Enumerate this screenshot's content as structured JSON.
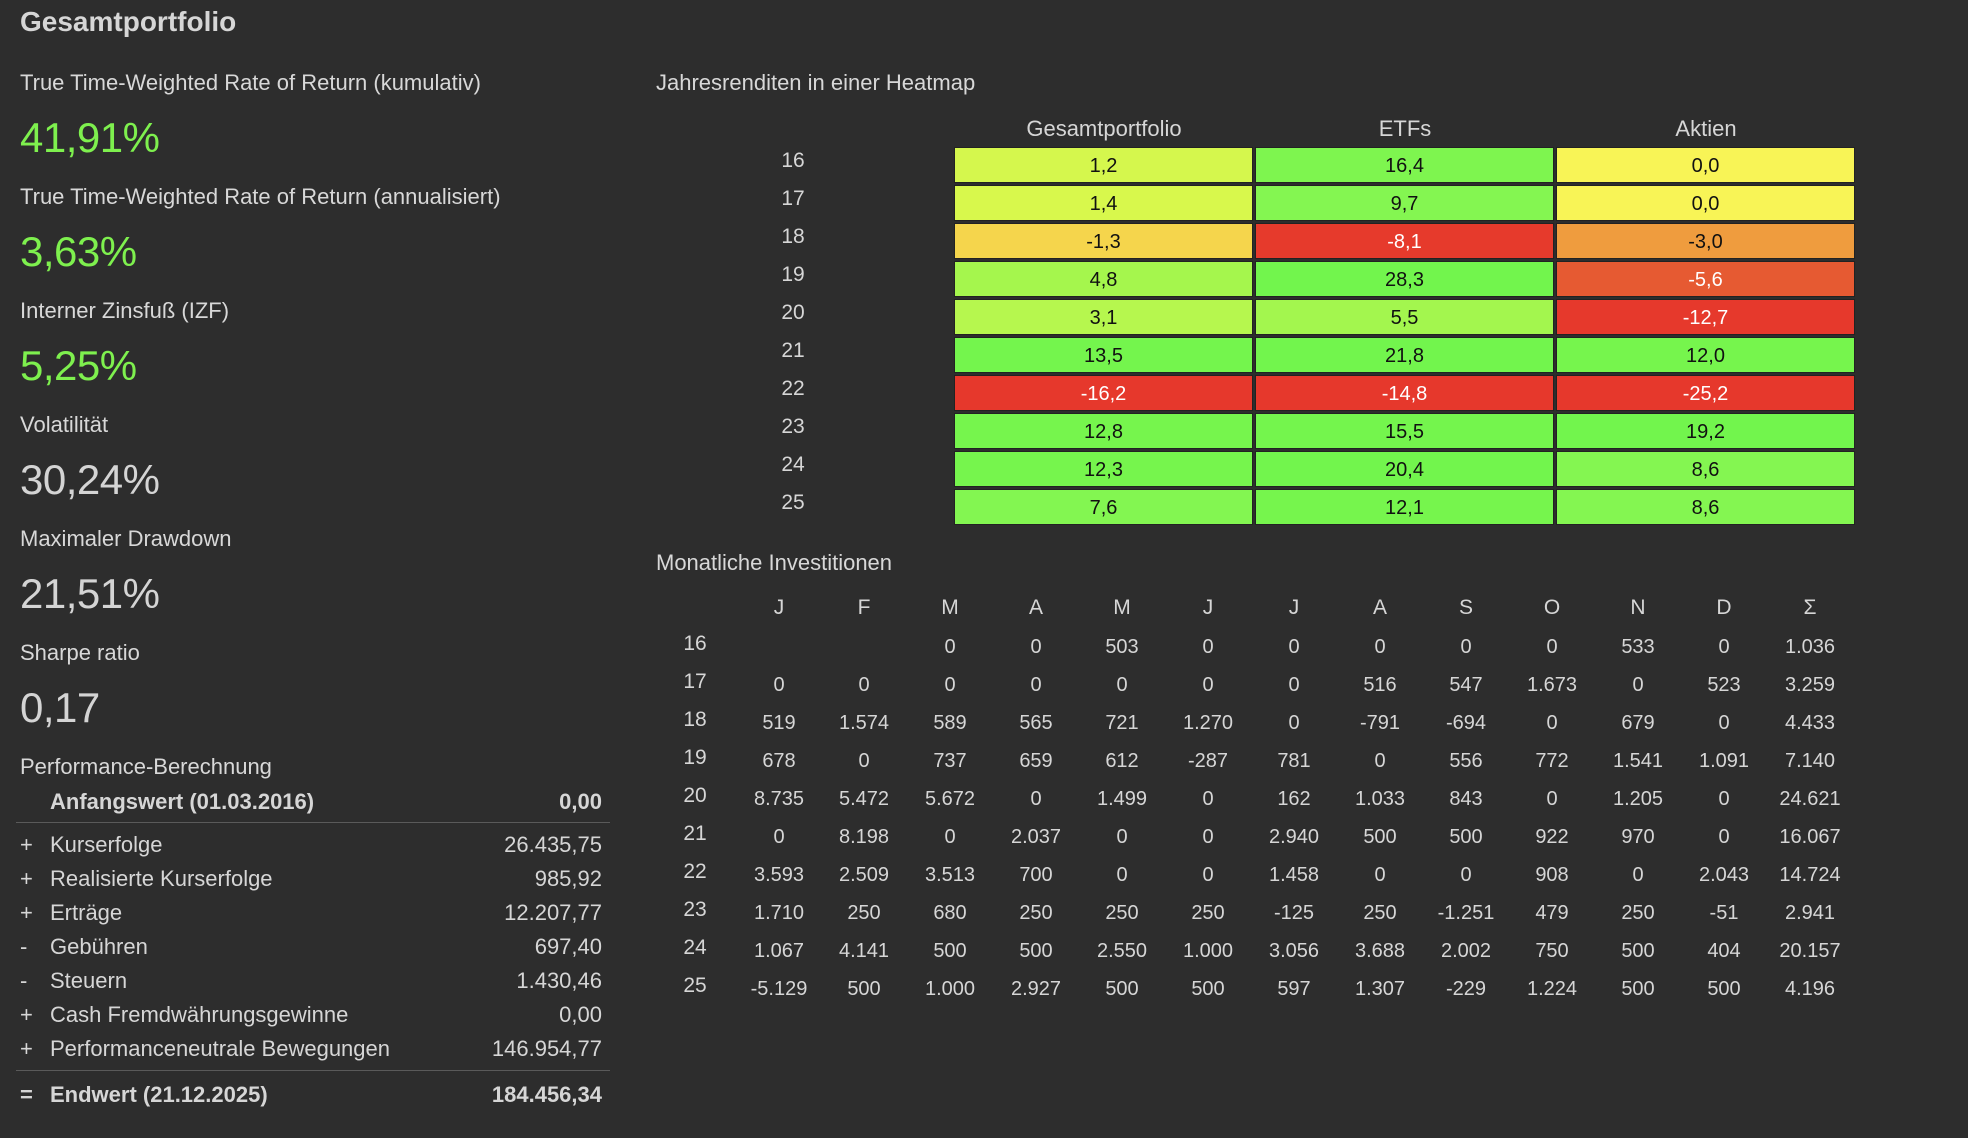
{
  "page_title": "Gesamtportfolio",
  "kpis": [
    {
      "label": "True Time-Weighted Rate of Return (kumulativ)",
      "value": "41,91%",
      "color": "green"
    },
    {
      "label": "True Time-Weighted Rate of Return (annualisiert)",
      "value": "3,63%",
      "color": "green"
    },
    {
      "label": "Interner Zinsfuß (IZF)",
      "value": "5,25%",
      "color": "green"
    },
    {
      "label": "Volatilität",
      "value": "30,24%",
      "color": "neutral"
    },
    {
      "label": "Maximaler Drawdown",
      "value": "21,51%",
      "color": "neutral"
    },
    {
      "label": "Sharpe ratio",
      "value": "0,17",
      "color": "neutral"
    }
  ],
  "performance": {
    "title": "Performance-Berechnung",
    "start": {
      "label": "Anfangswert (01.03.2016)",
      "value": "0,00"
    },
    "rows": [
      {
        "op": "+",
        "label": "Kurserfolge",
        "value": "26.435,75"
      },
      {
        "op": "+",
        "label": "Realisierte Kurserfolge",
        "value": "985,92"
      },
      {
        "op": "+",
        "label": "Erträge",
        "value": "12.207,77"
      },
      {
        "op": "-",
        "label": "Gebühren",
        "value": "697,40"
      },
      {
        "op": "-",
        "label": "Steuern",
        "value": "1.430,46"
      },
      {
        "op": "+",
        "label": "Cash Fremdwährungsgewinne",
        "value": "0,00"
      },
      {
        "op": "+",
        "label": "Performanceneutrale Bewegungen",
        "value": "146.954,77"
      }
    ],
    "end": {
      "op": "=",
      "label": "Endwert (21.12.2025)",
      "value": "184.456,34"
    }
  },
  "heatmap": {
    "title": "Jahresrenditen in einer Heatmap",
    "columns": [
      "Gesamtportfolio",
      "ETFs",
      "Aktien"
    ],
    "years": [
      "16",
      "17",
      "18",
      "19",
      "20",
      "21",
      "22",
      "23",
      "24",
      "25"
    ],
    "values": [
      [
        "1,2",
        "16,4",
        "0,0"
      ],
      [
        "1,4",
        "9,7",
        "0,0"
      ],
      [
        "-1,3",
        "-8,1",
        "-3,0"
      ],
      [
        "4,8",
        "28,3",
        "-5,6"
      ],
      [
        "3,1",
        "5,5",
        "-12,7"
      ],
      [
        "13,5",
        "21,8",
        "12,0"
      ],
      [
        "-16,2",
        "-14,8",
        "-25,2"
      ],
      [
        "12,8",
        "15,5",
        "19,2"
      ],
      [
        "12,3",
        "20,4",
        "8,6"
      ],
      [
        "7,6",
        "12,1",
        "8,6"
      ]
    ],
    "colors": [
      [
        "#d5f74d",
        "#7ef54f",
        "#f8f456"
      ],
      [
        "#d8f84c",
        "#84f651",
        "#f8f456"
      ],
      [
        "#f5d54c",
        "#e63a2c",
        "#ef9c3e"
      ],
      [
        "#a5f64d",
        "#72f54d",
        "#e65a32"
      ],
      [
        "#b6f74e",
        "#a3f64e",
        "#e6392c"
      ],
      [
        "#74f54d",
        "#72f54d",
        "#76f54d"
      ],
      [
        "#e6382c",
        "#e6382c",
        "#e6382c"
      ],
      [
        "#76f54d",
        "#74f54d",
        "#72f54d"
      ],
      [
        "#76f54d",
        "#72f54d",
        "#84f651"
      ],
      [
        "#83f651",
        "#76f54d",
        "#84f651"
      ]
    ],
    "text_white": [
      [
        false,
        false,
        false
      ],
      [
        false,
        false,
        false
      ],
      [
        false,
        true,
        false
      ],
      [
        false,
        false,
        true
      ],
      [
        false,
        false,
        true
      ],
      [
        false,
        false,
        false
      ],
      [
        true,
        true,
        true
      ],
      [
        false,
        false,
        false
      ],
      [
        false,
        false,
        false
      ],
      [
        false,
        false,
        false
      ]
    ]
  },
  "monthly": {
    "title": "Monatliche Investitionen",
    "months": [
      "J",
      "F",
      "M",
      "A",
      "M",
      "J",
      "J",
      "A",
      "S",
      "O",
      "N",
      "D",
      "Σ"
    ],
    "years": [
      "16",
      "17",
      "18",
      "19",
      "20",
      "21",
      "22",
      "23",
      "24",
      "25"
    ],
    "values": [
      [
        "",
        "",
        "0",
        "0",
        "503",
        "0",
        "0",
        "0",
        "0",
        "0",
        "533",
        "0",
        "1.036"
      ],
      [
        "0",
        "0",
        "0",
        "0",
        "0",
        "0",
        "0",
        "516",
        "547",
        "1.673",
        "0",
        "523",
        "3.259"
      ],
      [
        "519",
        "1.574",
        "589",
        "565",
        "721",
        "1.270",
        "0",
        "-791",
        "-694",
        "0",
        "679",
        "0",
        "4.433"
      ],
      [
        "678",
        "0",
        "737",
        "659",
        "612",
        "-287",
        "781",
        "0",
        "556",
        "772",
        "1.541",
        "1.091",
        "7.140"
      ],
      [
        "8.735",
        "5.472",
        "5.672",
        "0",
        "1.499",
        "0",
        "162",
        "1.033",
        "843",
        "0",
        "1.205",
        "0",
        "24.621"
      ],
      [
        "0",
        "8.198",
        "0",
        "2.037",
        "0",
        "0",
        "2.940",
        "500",
        "500",
        "922",
        "970",
        "0",
        "16.067"
      ],
      [
        "3.593",
        "2.509",
        "3.513",
        "700",
        "0",
        "0",
        "1.458",
        "0",
        "0",
        "908",
        "0",
        "2.043",
        "14.724"
      ],
      [
        "1.710",
        "250",
        "680",
        "250",
        "250",
        "250",
        "-125",
        "250",
        "-1.251",
        "479",
        "250",
        "-51",
        "2.941"
      ],
      [
        "1.067",
        "4.141",
        "500",
        "500",
        "2.550",
        "1.000",
        "3.056",
        "3.688",
        "2.002",
        "750",
        "500",
        "404",
        "20.157"
      ],
      [
        "-5.129",
        "500",
        "1.000",
        "2.927",
        "500",
        "500",
        "597",
        "1.307",
        "-229",
        "1.224",
        "500",
        "500",
        "4.196"
      ]
    ]
  }
}
